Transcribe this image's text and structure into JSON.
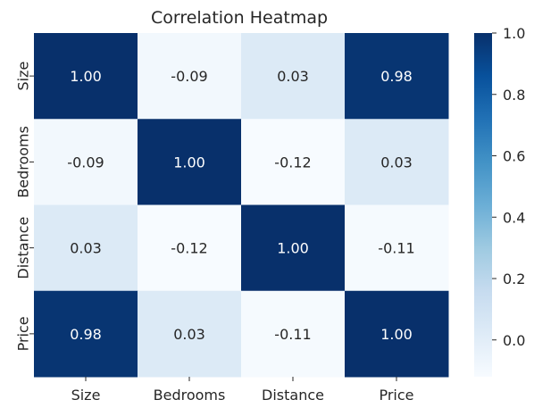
{
  "chart_data": {
    "type": "heatmap",
    "title": "Correlation Heatmap",
    "xlabel": "",
    "ylabel": "",
    "x_categories": [
      "Size",
      "Bedrooms",
      "Distance",
      "Price"
    ],
    "y_categories": [
      "Size",
      "Bedrooms",
      "Distance",
      "Price"
    ],
    "values": [
      [
        1.0,
        -0.09,
        0.03,
        0.98
      ],
      [
        -0.09,
        1.0,
        -0.12,
        0.03
      ],
      [
        0.03,
        -0.12,
        1.0,
        -0.11
      ],
      [
        0.98,
        0.03,
        -0.11,
        1.0
      ]
    ],
    "value_format": "0.00",
    "colormap": "Blues",
    "color_range": [
      -0.12,
      1.0
    ],
    "colorbar_ticks": [
      0.0,
      0.2,
      0.4,
      0.6,
      0.8,
      1.0
    ],
    "colorbar_tick_labels": [
      "0.0",
      "0.2",
      "0.4",
      "0.6",
      "0.8",
      "1.0"
    ],
    "annotations_on": true,
    "grid": false,
    "colorbar_position": "right"
  }
}
